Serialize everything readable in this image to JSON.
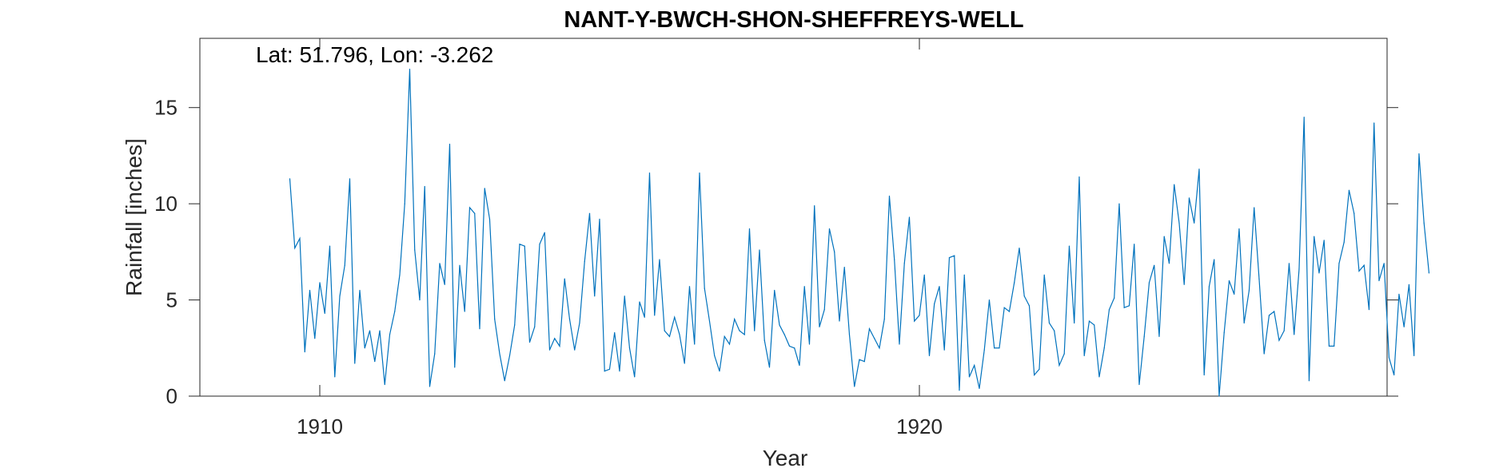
{
  "chart_data": {
    "type": "line",
    "title": "NANT-Y-BWCH-SHON-SHEFFREYS-WELL",
    "annotation": "Lat: 51.796, Lon: -3.262",
    "xlabel": "Year",
    "ylabel": "Rainfall [inches]",
    "xlim": [
      1908.0,
      1927.8
    ],
    "ylim": [
      0,
      18.6
    ],
    "x_ticks": [
      1910,
      1920
    ],
    "x_tick_labels": [
      "1910",
      "1920"
    ],
    "y_ticks": [
      0,
      5,
      10,
      15
    ],
    "y_tick_labels": [
      "0",
      "5",
      "10",
      "15"
    ],
    "grid": false,
    "line_color": "#0072BD",
    "x_start": 1909.5,
    "x_step": 0.08333,
    "series": [
      {
        "values": [
          11.3,
          7.7,
          8.2,
          2.3,
          5.5,
          3.0,
          5.9,
          4.3,
          7.8,
          1.0,
          5.2,
          6.8,
          11.3,
          1.7,
          5.5,
          2.5,
          3.4,
          1.8,
          3.4,
          0.6,
          3.2,
          4.4,
          6.3,
          10.0,
          17.0,
          7.6,
          5.0,
          10.9,
          0.5,
          2.2,
          6.9,
          5.8,
          13.1,
          1.5,
          6.8,
          4.4,
          9.8,
          9.5,
          3.5,
          10.8,
          9.2,
          4.0,
          2.2,
          0.8,
          2.1,
          3.7,
          7.9,
          7.8,
          2.8,
          3.6,
          7.9,
          8.5,
          2.4,
          3.0,
          2.6,
          6.1,
          4.0,
          2.4,
          3.8,
          7.0,
          9.5,
          5.2,
          9.2,
          1.3,
          1.4,
          3.3,
          1.3,
          5.2,
          2.5,
          1.0,
          4.9,
          4.1,
          11.6,
          4.2,
          7.1,
          3.4,
          3.1,
          4.1,
          3.2,
          1.7,
          5.7,
          2.7,
          11.6,
          5.6,
          3.9,
          2.1,
          1.3,
          3.1,
          2.7,
          4.0,
          3.4,
          3.2,
          8.7,
          3.4,
          7.6,
          2.9,
          1.5,
          5.5,
          3.7,
          3.2,
          2.6,
          2.5,
          1.6,
          5.7,
          2.7,
          9.9,
          3.6,
          4.5,
          8.7,
          7.5,
          3.9,
          6.7,
          3.2,
          0.5,
          1.9,
          1.8,
          3.5,
          3.0,
          2.5,
          4.0,
          10.4,
          7.1,
          2.7,
          6.9,
          9.3,
          3.9,
          4.2,
          6.3,
          2.1,
          4.8,
          5.7,
          2.4,
          7.2,
          7.3,
          0.3,
          6.3,
          1.0,
          1.6,
          0.4,
          2.4,
          5.0,
          2.5,
          2.5,
          4.6,
          4.4,
          5.9,
          7.7,
          5.2,
          4.7,
          1.1,
          1.4,
          6.3,
          3.8,
          3.4,
          1.6,
          2.2,
          7.8,
          3.8,
          11.4,
          2.1,
          3.9,
          3.7,
          1.0,
          2.5,
          4.5,
          5.1,
          10.0,
          4.6,
          4.7,
          7.9,
          0.6,
          3.1,
          5.9,
          6.8,
          3.1,
          8.3,
          6.9,
          11.0,
          9.0,
          5.8,
          10.3,
          9.0,
          11.8,
          1.1,
          5.7,
          7.1,
          0.0,
          3.3,
          6.0,
          5.3,
          8.7,
          3.8,
          5.5,
          9.8,
          6.1,
          2.2,
          4.2,
          4.4,
          2.9,
          3.4,
          6.9,
          3.2,
          6.6,
          14.5,
          0.8,
          8.3,
          6.4,
          8.1,
          2.6,
          2.6,
          6.9,
          8.0,
          10.7,
          9.5,
          6.5,
          6.8,
          4.5,
          14.2,
          6.0,
          6.9,
          2.0,
          1.1,
          5.3,
          3.6,
          5.8,
          2.1,
          12.6,
          9.0,
          6.4
        ]
      }
    ]
  }
}
